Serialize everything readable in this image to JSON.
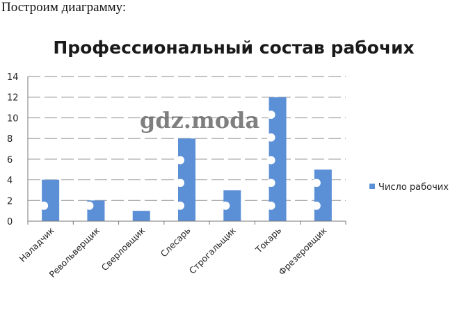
{
  "intro_text": "Построим диаграмму:",
  "watermark": "gdz.moda",
  "chart_data": {
    "type": "bar",
    "title": "Профессиональный состав рабочих",
    "categories": [
      "Наладчик",
      "Револьверщик",
      "Сверловщик",
      "Слесарь",
      "Строгальщик",
      "Токарь",
      "Фрезеровщик"
    ],
    "series": [
      {
        "name": "Число рабочих",
        "values": [
          4,
          2,
          1,
          8,
          3,
          12,
          5
        ]
      }
    ],
    "ylim": [
      0,
      14
    ],
    "yticks": [
      0,
      2,
      4,
      6,
      8,
      10,
      12,
      14
    ],
    "grid": true,
    "legend": "right",
    "colors": {
      "bar": "#5b8fd6",
      "grid": "#888888",
      "dots": "#ffffff"
    }
  }
}
